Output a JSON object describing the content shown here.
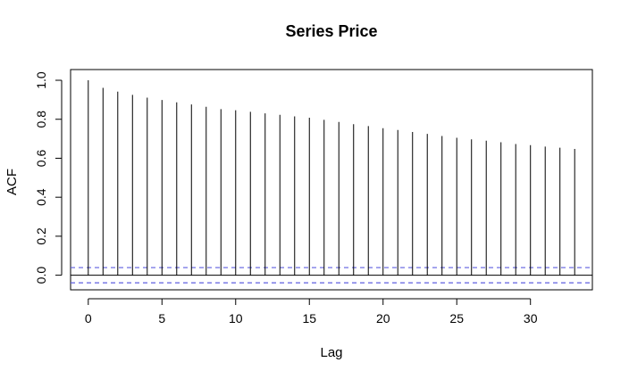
{
  "chart_data": {
    "type": "bar",
    "title": "Series  Price",
    "xlabel": "Lag",
    "ylabel": "ACF",
    "xlim": [
      -1.2,
      34.2
    ],
    "ylim": [
      -0.075,
      1.055
    ],
    "xticks": [
      0,
      5,
      10,
      15,
      20,
      25,
      30
    ],
    "yticks": [
      0.0,
      0.2,
      0.4,
      0.6,
      0.8,
      1.0
    ],
    "ytick_labels": [
      "0.0",
      "0.2",
      "0.4",
      "0.6",
      "0.8",
      "1.0"
    ],
    "lags": [
      0,
      1,
      2,
      3,
      4,
      5,
      6,
      7,
      8,
      9,
      10,
      11,
      12,
      13,
      14,
      15,
      16,
      17,
      18,
      19,
      20,
      21,
      22,
      23,
      24,
      25,
      26,
      27,
      28,
      29,
      30,
      31,
      32,
      33
    ],
    "values": [
      1.0,
      0.961,
      0.942,
      0.925,
      0.911,
      0.899,
      0.887,
      0.876,
      0.864,
      0.852,
      0.846,
      0.838,
      0.83,
      0.823,
      0.815,
      0.808,
      0.797,
      0.786,
      0.775,
      0.765,
      0.754,
      0.745,
      0.735,
      0.725,
      0.714,
      0.705,
      0.697,
      0.69,
      0.682,
      0.673,
      0.667,
      0.66,
      0.654,
      0.648
    ],
    "confidence_bound": 0.039,
    "confidence_color": "#5e5edf",
    "zero_line": true,
    "grid": false
  }
}
